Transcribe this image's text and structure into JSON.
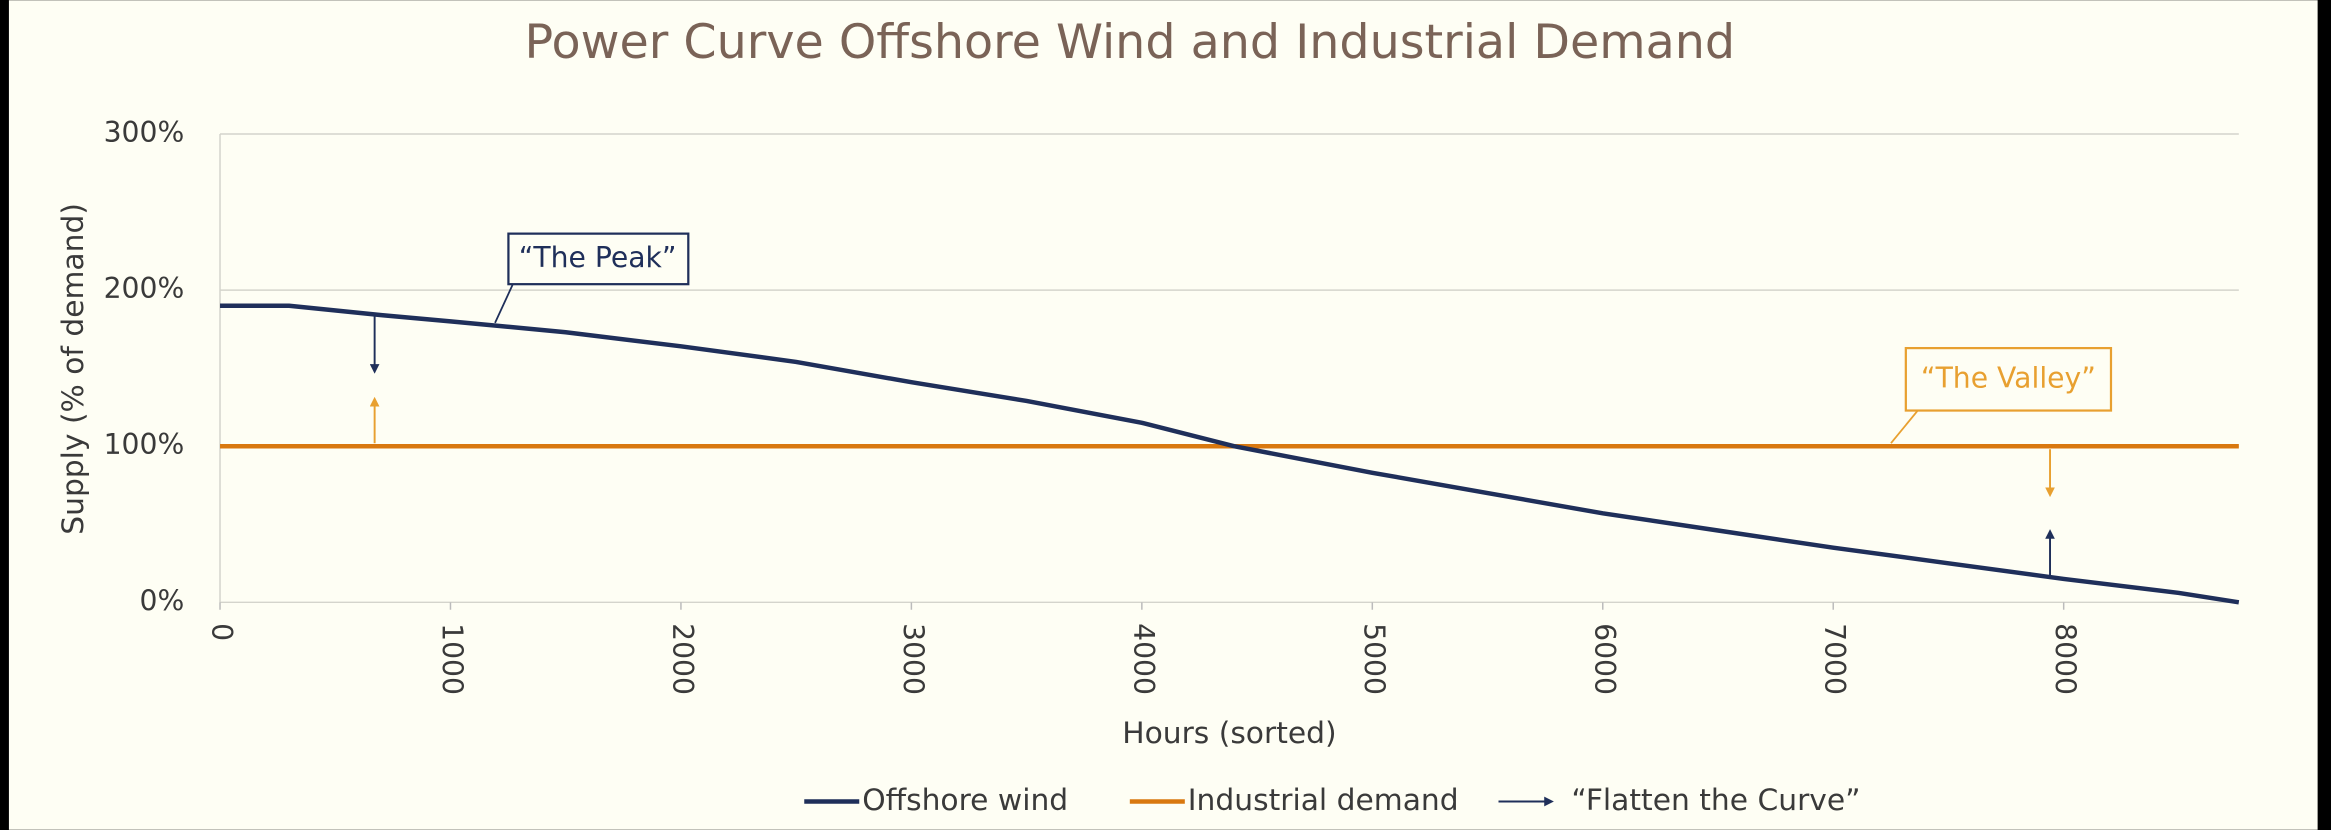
{
  "chart_data": {
    "type": "line",
    "title": "Power Curve Offshore Wind and Industrial Demand",
    "x_label": "Hours (sorted)",
    "y_label": "Supply (% of demand)",
    "x": [
      0,
      300,
      700,
      1000,
      1500,
      2000,
      2500,
      3000,
      3500,
      4000,
      4400,
      5000,
      5500,
      6000,
      6500,
      7000,
      7500,
      8000,
      8500,
      8760
    ],
    "series": [
      {
        "name": "Offshore wind",
        "color": "#1f2f5a",
        "values": [
          190,
          190,
          184,
          180,
          173,
          164,
          154,
          141,
          129,
          115,
          100,
          83,
          70,
          57,
          46,
          35,
          25,
          15,
          6,
          0
        ]
      },
      {
        "name": "Industrial demand",
        "color": "#d9780f",
        "values": [
          100,
          100,
          100,
          100,
          100,
          100,
          100,
          100,
          100,
          100,
          100,
          100,
          100,
          100,
          100,
          100,
          100,
          100,
          100,
          100
        ]
      }
    ],
    "xlim": [
      0,
      8760
    ],
    "xticks": [
      0,
      1000,
      2000,
      3000,
      4000,
      5000,
      6000,
      7000,
      8000
    ],
    "ylim": [
      0,
      300
    ],
    "yticks": [
      {
        "value": 0,
        "label": "0%"
      },
      {
        "value": 100,
        "label": "100%"
      },
      {
        "value": 200,
        "label": "200%"
      },
      {
        "value": 300,
        "label": "300%"
      }
    ],
    "grid": true,
    "annotations": [
      "“The Peak”",
      "“The Valley”"
    ],
    "arrow_legend": "“Flatten the Curve”"
  }
}
